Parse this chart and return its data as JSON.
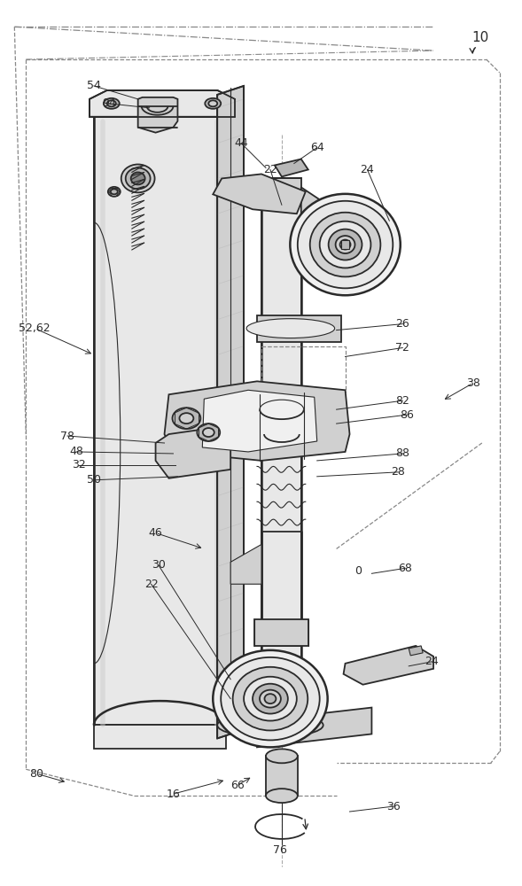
{
  "bg": "#ffffff",
  "lc": "#2a2a2a",
  "lc2": "#444444",
  "gray1": "#e8e8e8",
  "gray2": "#d0d0d0",
  "gray3": "#b8b8b8",
  "gray4": "#f0f0f0",
  "dash_col": "#888888",
  "figsize": [
    5.89,
    10.0
  ],
  "dpi": 100
}
